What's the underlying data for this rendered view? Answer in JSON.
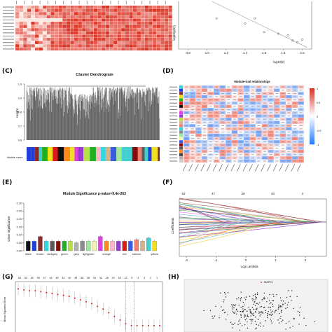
{
  "panels": {
    "C": {
      "label": "(C)",
      "title": "Cluster Dendrogram",
      "ylabel": "Height",
      "colorbar_label": "Module colors",
      "yticks": [
        "1.0",
        "0.9",
        "0.8",
        "0.7",
        "0.6"
      ]
    },
    "D": {
      "label": "(D)",
      "title": "Module-trait relationships",
      "scale": [
        "1",
        "0.5",
        "0",
        "-0.5",
        "-1"
      ]
    },
    "E": {
      "label": "(E)",
      "title": "Module Significance p-value=9.4e-263",
      "ylabel": "Gene Significance",
      "yticks": [
        "0.00",
        "0.05",
        "0.10",
        "0.15",
        "0.20",
        "0.25",
        "0.30"
      ]
    },
    "F": {
      "label": "(F)",
      "xlabel": "Log Lambda",
      "ylabel": "Coefficients",
      "top_ticks": [
        "53",
        "47",
        "39",
        "20",
        "4"
      ],
      "xticks": [
        "-2",
        "-1",
        "0",
        "1",
        "2"
      ]
    },
    "G": {
      "label": "(G)",
      "ylabel": "Mean-Squared Error",
      "top_ticks": [
        "53",
        "53",
        "52",
        "50",
        "47",
        "46",
        "45",
        "44",
        "40",
        "39",
        "38",
        "36",
        "34",
        "30",
        "28",
        "20",
        "18",
        "12",
        "9",
        "4",
        "3",
        "2",
        "1"
      ]
    },
    "H": {
      "label": "(H)",
      "highlight": "MAPK1"
    },
    "B": {
      "ylabel": "log10(p(k))",
      "xlabel": "log10(k)",
      "xticks": [
        "0.8",
        "1.0",
        "1.2",
        "1.4",
        "1.6",
        "1.8",
        "2.0"
      ]
    }
  },
  "chart_data": [
    {
      "type": "bar",
      "panel": "E",
      "title": "Module Significance p-value=9.4e-263",
      "ylabel": "Gene Significance",
      "ylim": [
        0,
        0.3
      ],
      "categories": [
        "black",
        "blue",
        "brown",
        "cyan",
        "darkgrey",
        "darkred",
        "green",
        "greenyellow",
        "grey",
        "grey60",
        "lightgreen",
        "lightyellow",
        "magenta",
        "orange",
        "pink",
        "purple",
        "red",
        "royalblue",
        "salmon",
        "tan",
        "turquoise",
        "yellow"
      ],
      "printed_categories": [
        "black",
        "brown",
        "darkgrey",
        "green",
        "grey",
        "lightgreen",
        "orange",
        "red",
        "salmon",
        "yellow"
      ],
      "values": [
        0.06,
        0.06,
        0.09,
        0.06,
        0.06,
        0.06,
        0.06,
        0.06,
        0.05,
        0.06,
        0.06,
        0.06,
        0.09,
        0.06,
        0.06,
        0.06,
        0.06,
        0.06,
        0.07,
        0.06,
        0.08,
        0.06
      ],
      "colors": [
        "#111111",
        "#1f3fd8",
        "#8b2a2a",
        "#36d6e0",
        "#5a5a5a",
        "#8a0b0b",
        "#20b020",
        "#b6e04a",
        "#b0b0b0",
        "#8c8c8c",
        "#9ee89e",
        "#f4f2b0",
        "#e040e0",
        "#ff8c1a",
        "#ffb6c8",
        "#9a3ad0",
        "#e01818",
        "#3a5ae0",
        "#f08070",
        "#d2b48c",
        "#40d0d0",
        "#f0e020"
      ]
    },
    {
      "type": "line",
      "panel": "B",
      "xlabel": "log10(k)",
      "ylabel": "log10(p(k))",
      "x": [
        1.1,
        1.4,
        1.5,
        1.6,
        1.75,
        1.85,
        1.9,
        1.95,
        2.0
      ],
      "y": [
        -1.1,
        -1.25,
        -1.1,
        -1.5,
        -1.55,
        -1.6,
        -1.75,
        -1.8,
        -1.72
      ]
    },
    {
      "type": "line",
      "panel": "G",
      "ylabel": "Mean-Squared Error",
      "x": [
        0,
        2,
        4,
        6,
        8,
        10,
        12,
        14,
        16,
        18,
        20,
        22,
        24,
        26,
        28,
        30,
        32,
        34,
        36,
        38,
        40,
        42,
        44,
        46,
        48,
        50
      ],
      "y": [
        0.62,
        0.61,
        0.6,
        0.6,
        0.59,
        0.58,
        0.57,
        0.56,
        0.55,
        0.54,
        0.52,
        0.5,
        0.48,
        0.46,
        0.43,
        0.4,
        0.36,
        0.32,
        0.28,
        0.24,
        0.22,
        0.22,
        0.22,
        0.22,
        0.22,
        0.22
      ]
    }
  ]
}
